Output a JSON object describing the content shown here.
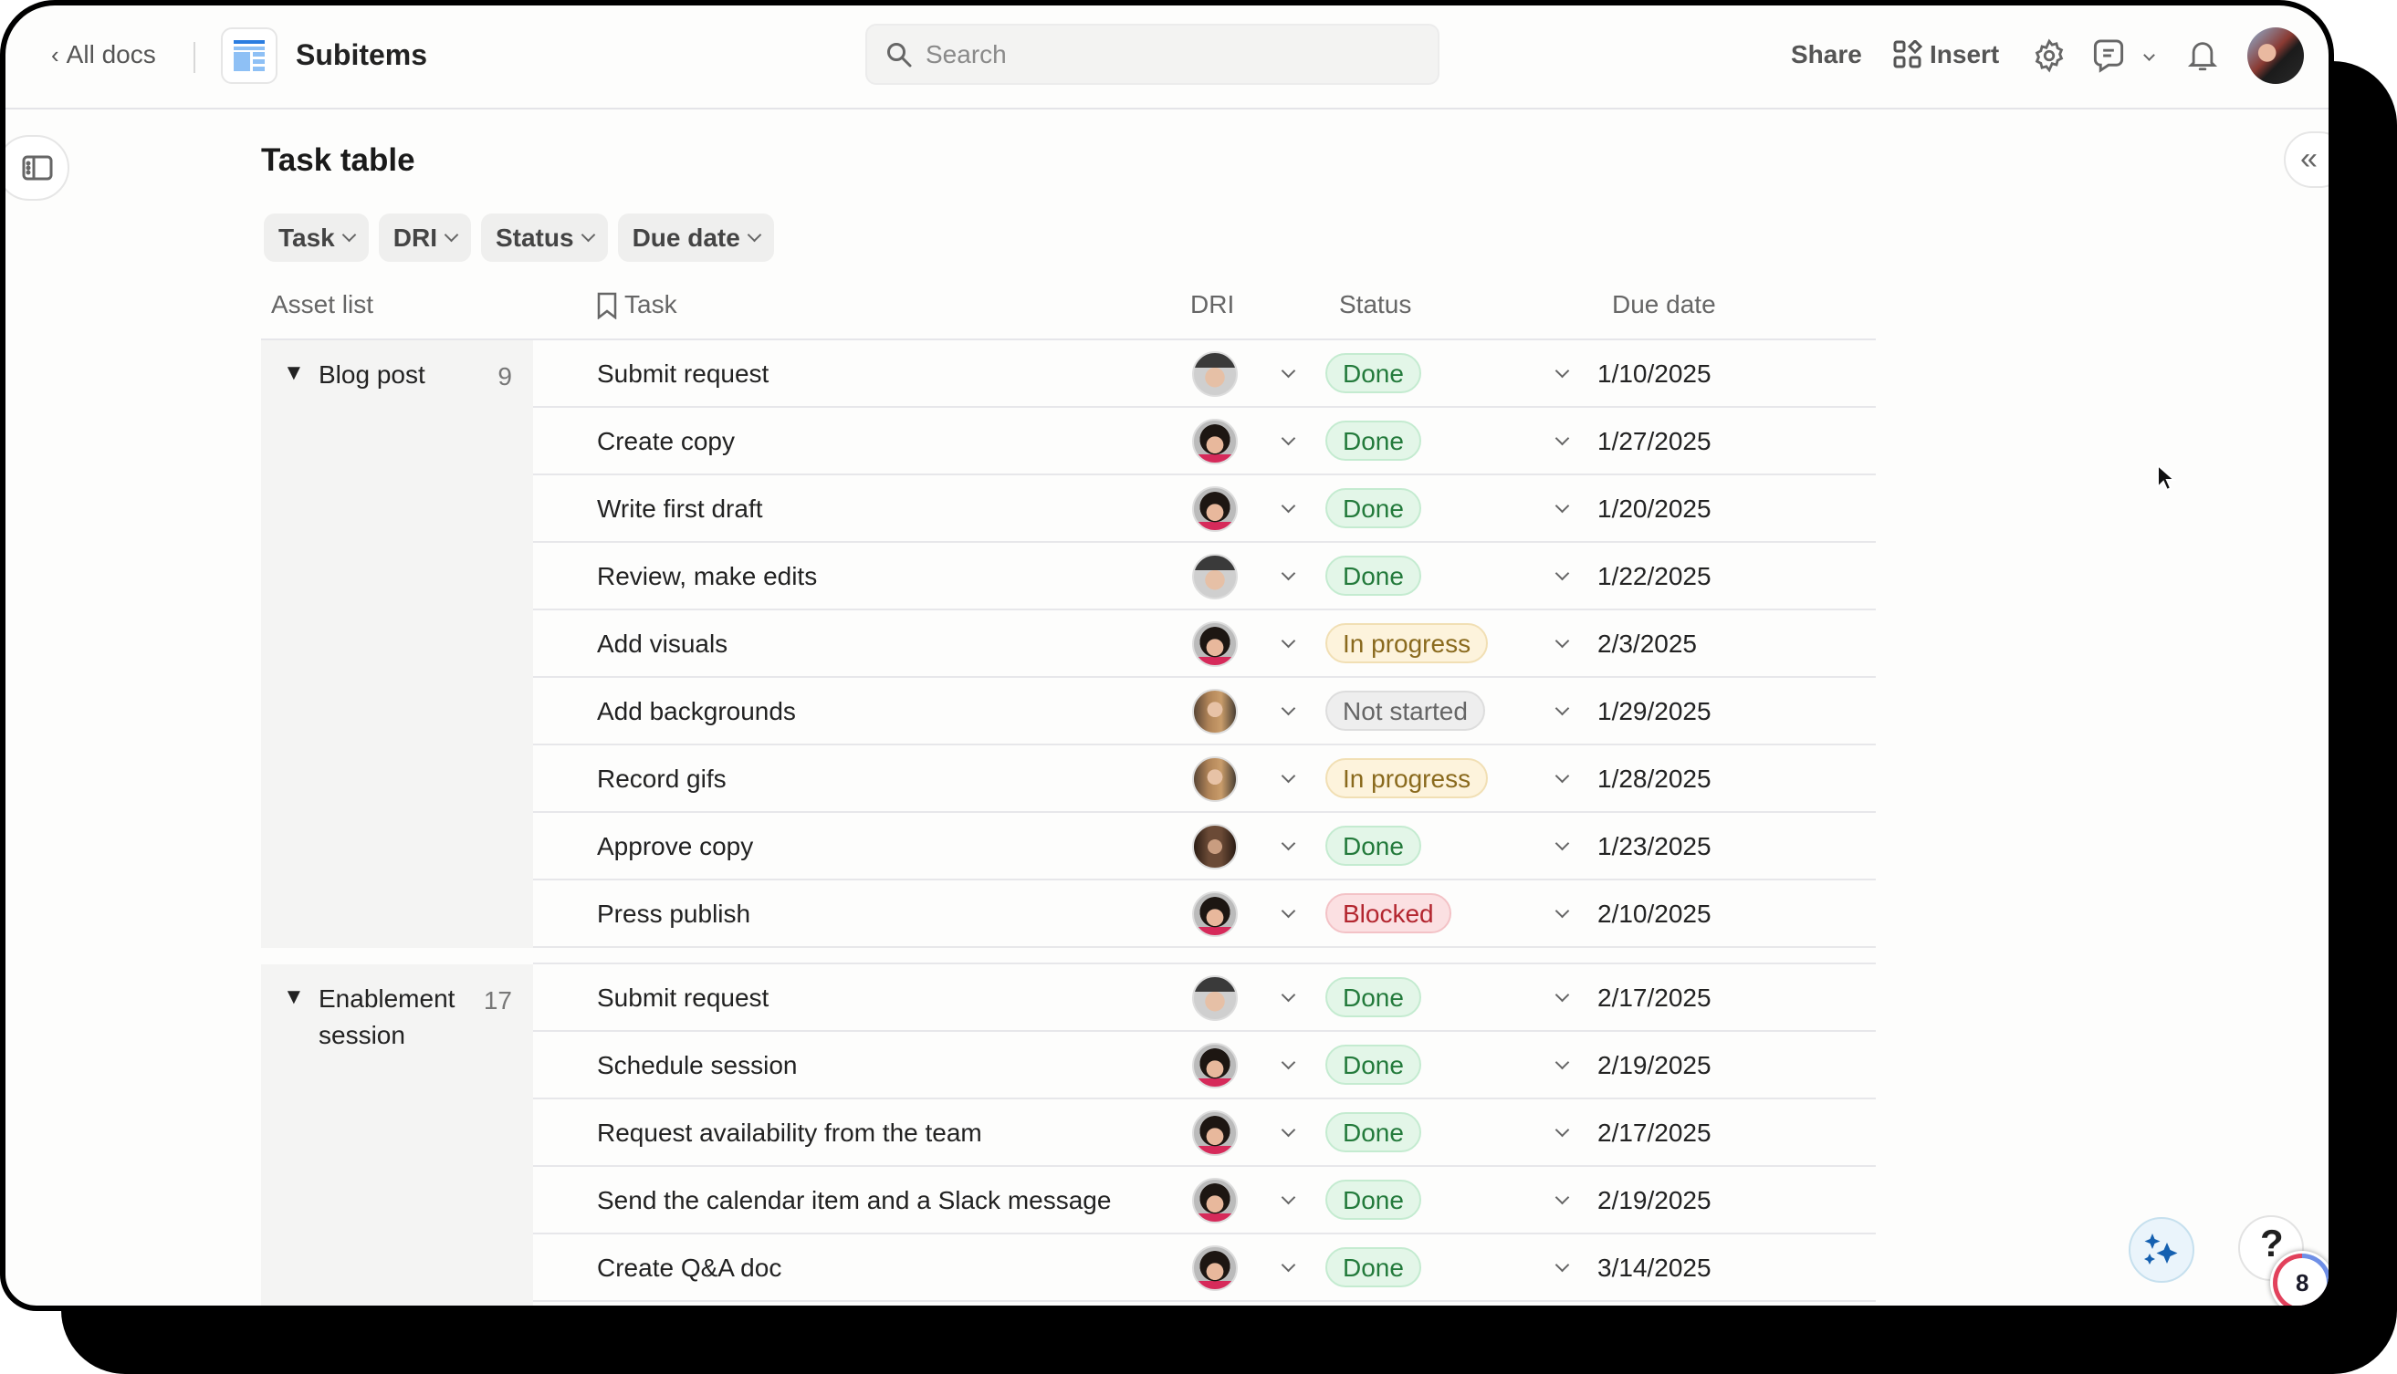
{
  "header": {
    "back_label": "All docs",
    "doc_title": "Subitems",
    "search_placeholder": "Search",
    "share_label": "Share",
    "insert_label": "Insert",
    "avatar": "user-avatar"
  },
  "page": {
    "title": "Task table",
    "filters": [
      "Task",
      "DRI",
      "Status",
      "Due date"
    ]
  },
  "table": {
    "columns": {
      "group": "Asset list",
      "task": "Task",
      "dri": "DRI",
      "status": "Status",
      "due": "Due date"
    },
    "groups": [
      {
        "label": "Blog post",
        "count": "9",
        "rows": [
          {
            "task": "Submit request",
            "dri": "avatar-man-cap",
            "status": "Done",
            "due": "1/10/2025"
          },
          {
            "task": "Create copy",
            "dri": "avatar-curly-woman",
            "status": "Done",
            "due": "1/27/2025"
          },
          {
            "task": "Write first draft",
            "dri": "avatar-curly-woman",
            "status": "Done",
            "due": "1/20/2025"
          },
          {
            "task": "Review, make edits",
            "dri": "avatar-man-cap",
            "status": "Done",
            "due": "1/22/2025"
          },
          {
            "task": "Add visuals",
            "dri": "avatar-curly-woman",
            "status": "In progress",
            "due": "2/3/2025"
          },
          {
            "task": "Add backgrounds",
            "dri": "avatar-long-hair-woman",
            "status": "Not started",
            "due": "1/29/2025"
          },
          {
            "task": "Record gifs",
            "dri": "avatar-long-hair-woman",
            "status": "In progress",
            "due": "1/28/2025"
          },
          {
            "task": "Approve copy",
            "dri": "avatar-bearded-man",
            "status": "Done",
            "due": "1/23/2025"
          },
          {
            "task": "Press publish",
            "dri": "avatar-curly-woman",
            "status": "Blocked",
            "due": "2/10/2025"
          }
        ]
      },
      {
        "label": "Enablement session",
        "count": "17",
        "rows": [
          {
            "task": "Submit request",
            "dri": "avatar-man-cap",
            "status": "Done",
            "due": "2/17/2025"
          },
          {
            "task": "Schedule session",
            "dri": "avatar-curly-woman",
            "status": "Done",
            "due": "2/19/2025"
          },
          {
            "task": "Request availability from the team",
            "dri": "avatar-curly-woman",
            "status": "Done",
            "due": "2/17/2025"
          },
          {
            "task": "Send the calendar item and a Slack message",
            "dri": "avatar-curly-woman",
            "status": "Done",
            "due": "2/19/2025"
          },
          {
            "task": "Create Q&A doc",
            "dri": "avatar-curly-woman",
            "status": "Done",
            "due": "3/14/2025"
          },
          {
            "task": "",
            "dri": "",
            "status": "",
            "due": ""
          }
        ]
      }
    ]
  },
  "status_colors": {
    "Done": {
      "bg": "#e3f6e8",
      "border": "#c4ebd0",
      "text": "#237a3b"
    },
    "In progress": {
      "bg": "#fdf3dc",
      "border": "#f1dfb4",
      "text": "#8a6a1e"
    },
    "Not started": {
      "bg": "#eeeeee",
      "border": "#dddddd",
      "text": "#666666"
    },
    "Blocked": {
      "bg": "#fbe0e2",
      "border": "#f3c2c6",
      "text": "#b3262f"
    }
  },
  "floating": {
    "help_label": "?",
    "badge_count": "8"
  }
}
